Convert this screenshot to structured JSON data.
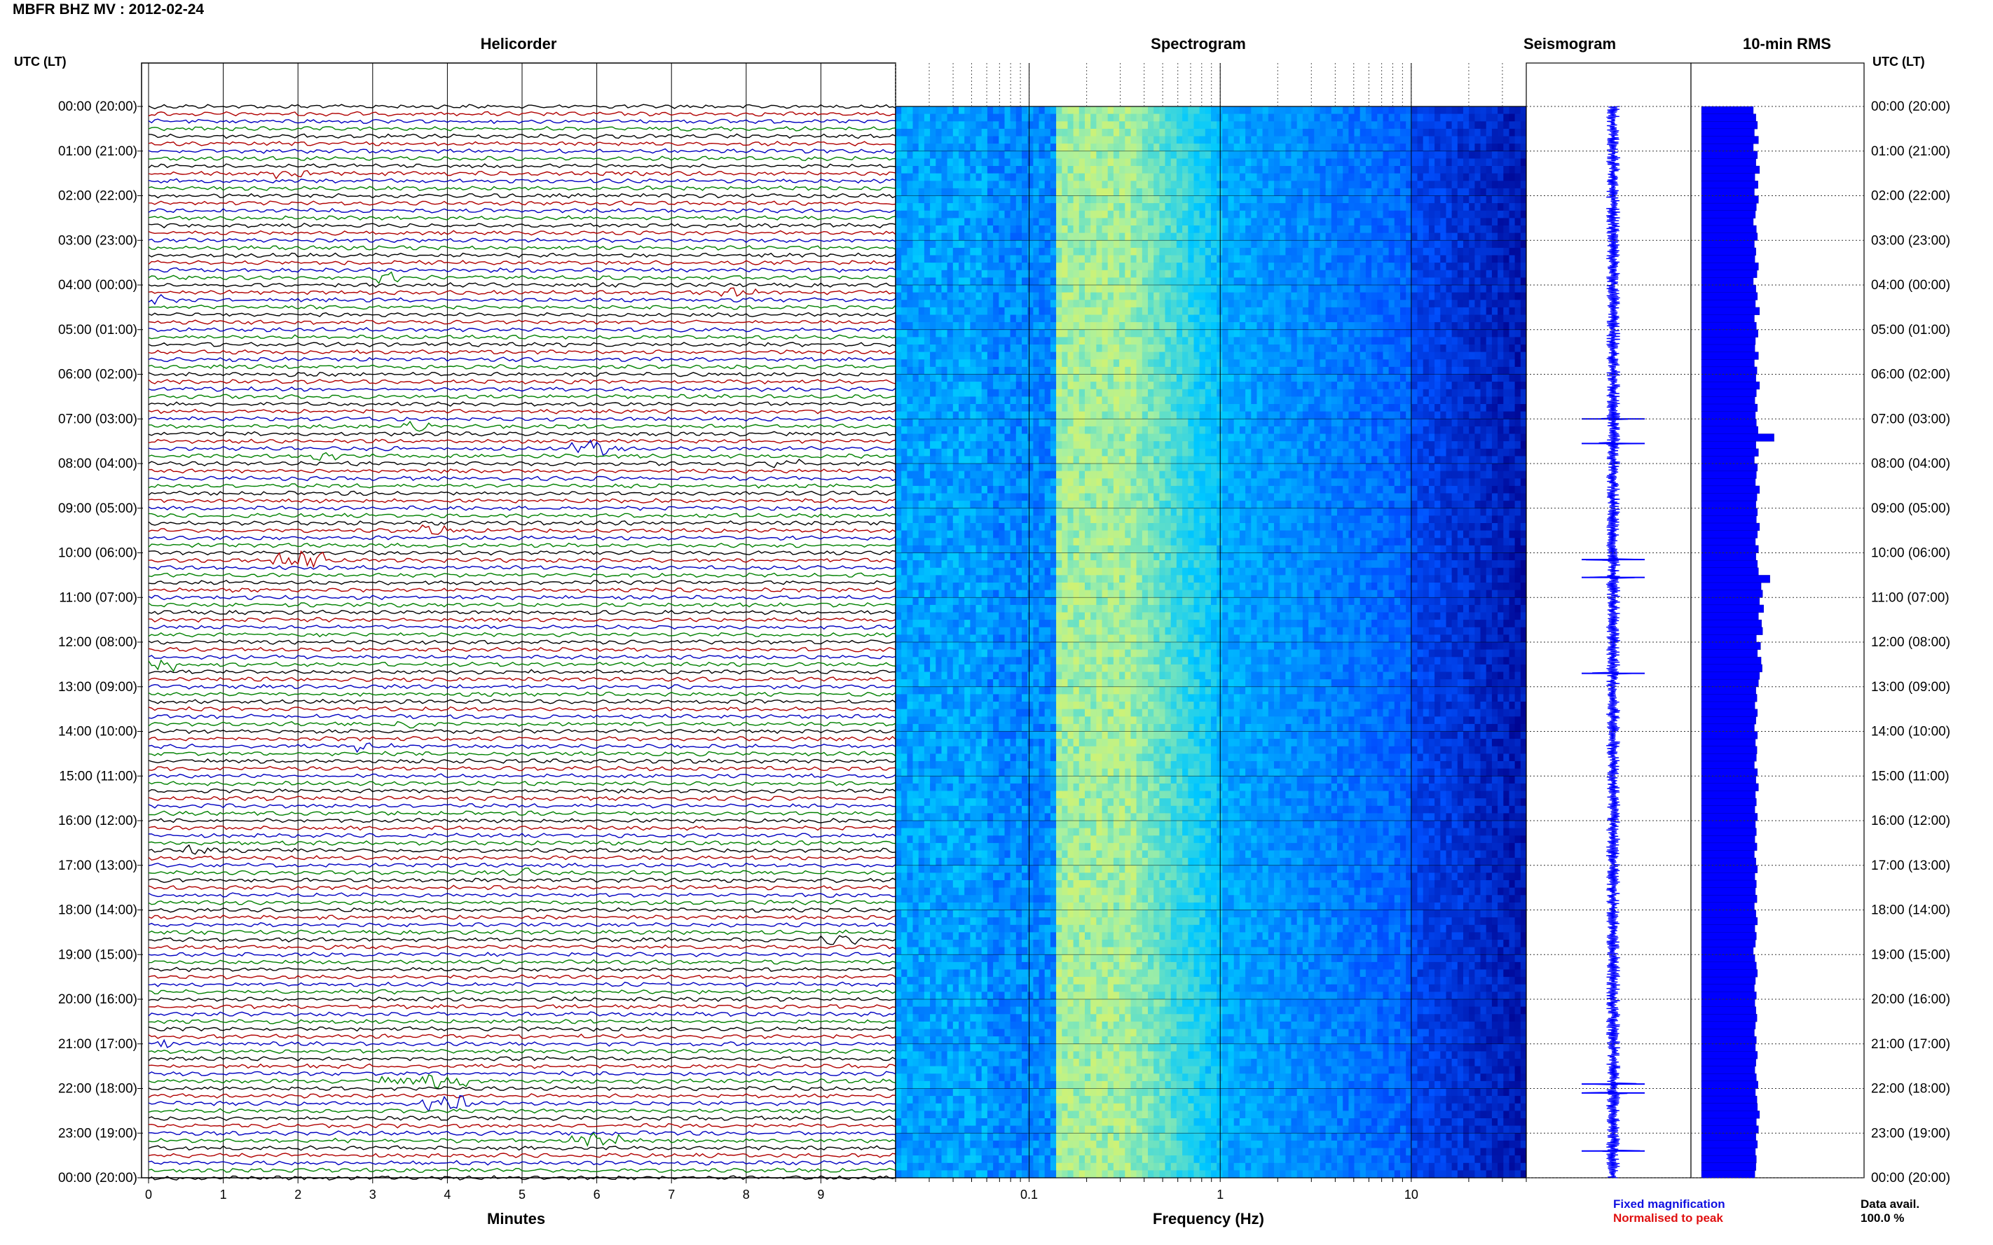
{
  "header": {
    "title": "MBFR BHZ MV : 2012‑02‑24"
  },
  "panels": {
    "helicorder": "Helicorder",
    "spectrogram": "Spectrogram",
    "seismogram": "Seismogram",
    "rms": "10‑min RMS"
  },
  "axes": {
    "utc_label": "UTC (LT)",
    "x_helicorder": "Minutes",
    "x_spectrogram": "Frequency (Hz)",
    "time_ticks": [
      "00:00 (20:00)",
      "01:00 (21:00)",
      "02:00 (22:00)",
      "03:00 (23:00)",
      "04:00 (00:00)",
      "05:00 (01:00)",
      "06:00 (02:00)",
      "07:00 (03:00)",
      "08:00 (04:00)",
      "09:00 (05:00)",
      "10:00 (06:00)",
      "11:00 (07:00)",
      "12:00 (08:00)",
      "13:00 (09:00)",
      "14:00 (10:00)",
      "15:00 (11:00)",
      "16:00 (12:00)",
      "17:00 (13:00)",
      "18:00 (14:00)",
      "19:00 (15:00)",
      "20:00 (16:00)",
      "21:00 (17:00)",
      "22:00 (18:00)",
      "23:00 (19:00)",
      "00:00 (20:00)"
    ],
    "minute_ticks": [
      "0",
      "1",
      "2",
      "3",
      "4",
      "5",
      "6",
      "7",
      "8",
      "9"
    ],
    "freq_ticks": [
      "0.1",
      "1",
      "10"
    ]
  },
  "legend": {
    "fixed": "Fixed magnification",
    "normalised": "Normalised to peak",
    "avail_label": "Data avail.",
    "avail_value": "100.0 %"
  },
  "colors": {
    "trace_cycle": [
      "#000000",
      "#b00000",
      "#0000c0",
      "#008000"
    ],
    "seismo": "#0000ff",
    "rms": "#0000ff",
    "legend_fixed": "#1010e0",
    "legend_normalised": "#e01010"
  },
  "chart_data": [
    {
      "type": "line",
      "title": "Helicorder",
      "xlabel": "Minutes",
      "xlim": [
        0,
        10
      ],
      "rows_per_hour": 6,
      "row_minutes": 10,
      "notable_events_utc_hour": [
        7.6,
        10.2,
        12.5,
        21.0,
        21.9,
        22.4,
        23.1
      ]
    },
    {
      "type": "heatmap",
      "title": "Spectrogram",
      "xlabel": "Frequency (Hz)",
      "x_scale": "log",
      "xlim": [
        0.02,
        40
      ],
      "colormap": [
        "#00008c",
        "#0050ff",
        "#00c8ff",
        "#a8f0a0",
        "#f5f54a"
      ],
      "peak_band_hz": [
        0.15,
        0.35
      ]
    },
    {
      "type": "line",
      "title": "Seismogram",
      "spikes_utc_hour": [
        7.0,
        7.55,
        10.15,
        10.55,
        12.7,
        21.9,
        22.1,
        23.4
      ]
    },
    {
      "type": "bar",
      "title": "10‑min RMS",
      "orientation": "horizontal",
      "bin_minutes": 10,
      "values": [
        1.0,
        1.05,
        1.08,
        1.02,
        1.1,
        1.0,
        1.08,
        1.05,
        1.12,
        1.03,
        1.09,
        1.02,
        1.1,
        1.06,
        1.04,
        1.0,
        1.06,
        1.08,
        1.02,
        1.05,
        1.03,
        1.1,
        1.07,
        1.0,
        1.05,
        1.08,
        1.04,
        1.12,
        1.02,
        1.06,
        1.09,
        1.04,
        1.03,
        1.1,
        1.02,
        1.07,
        1.05,
        1.12,
        1.06,
        1.03,
        1.08,
        1.04,
        1.06,
        1.09,
        1.4,
        1.05,
        1.1,
        1.02,
        1.08,
        1.06,
        1.04,
        1.12,
        1.07,
        1.05,
        1.08,
        1.06,
        1.12,
        1.08,
        1.04,
        1.1,
        1.05,
        1.08,
        1.1,
        1.32,
        1.15,
        1.18,
        1.12,
        1.2,
        1.1,
        1.16,
        1.18,
        1.06,
        1.14,
        1.08,
        1.15,
        1.17,
        1.12,
        1.1,
        1.05,
        1.07,
        1.03,
        1.08,
        1.05,
        1.02,
        1.08,
        1.04,
        1.07,
        1.06,
        1.02,
        1.08,
        1.05,
        1.1,
        1.04,
        1.06,
        1.03,
        1.08,
        1.04,
        1.06,
        1.03,
        1.07,
        1.02,
        1.05,
        1.08,
        1.03,
        1.06,
        1.04,
        1.07,
        1.02,
        1.05,
        1.08,
        1.03,
        1.06,
        1.04,
        1.0,
        1.03,
        1.06,
        1.08,
        1.04,
        1.02,
        1.06,
        1.03,
        1.05,
        1.07,
        1.04,
        1.02,
        1.06,
        1.04,
        1.08,
        1.05,
        1.03,
        1.06,
        1.09,
        1.04,
        1.07,
        1.08,
        1.12,
        1.06,
        1.1,
        1.05,
        1.08,
        1.04,
        1.06,
        1.05,
        1.03
      ]
    }
  ]
}
